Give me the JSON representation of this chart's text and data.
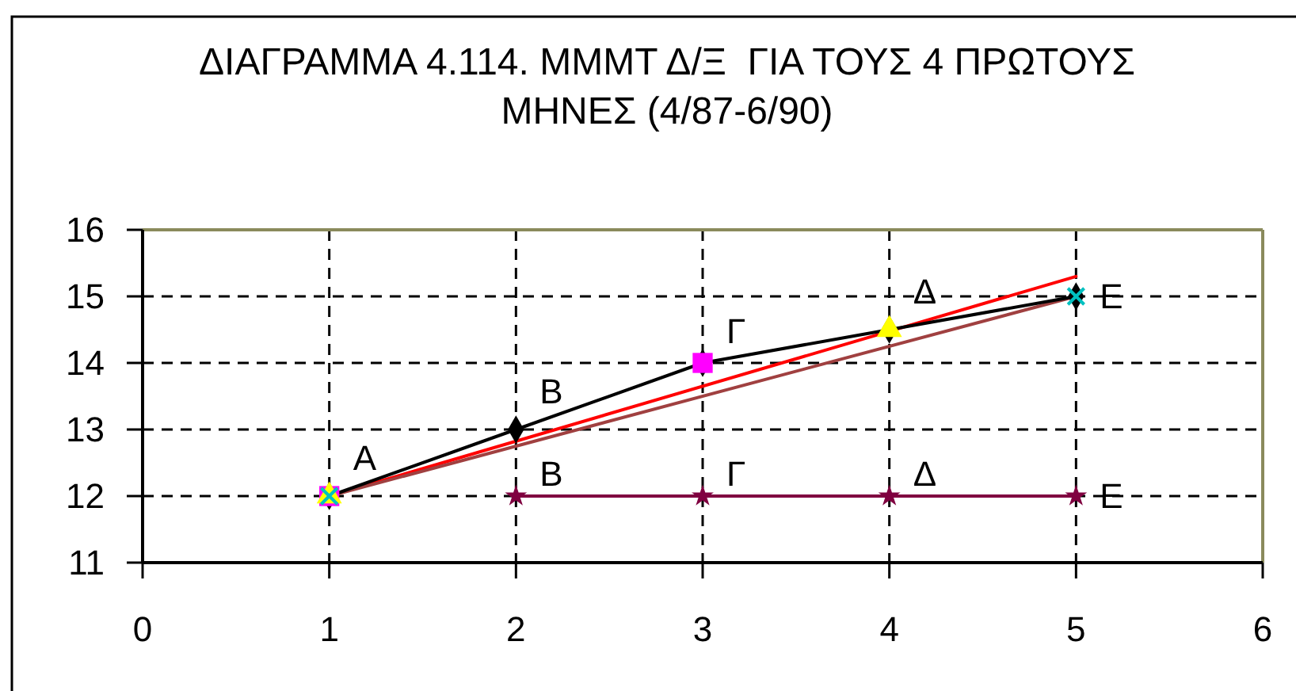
{
  "chart_data": {
    "type": "line",
    "title": "ΔΙΑΓΡΑΜΜΑ 4.114. ΜΜΜΤ Δ/Ξ  ΓΙΑ ΤΟΥΣ 4 ΠΡΩΤΟΥΣ ΜΗΝΕΣ (4/87-6/90)",
    "xlim": [
      0,
      6
    ],
    "xticks": [
      0,
      1,
      2,
      3,
      4,
      5,
      6
    ],
    "ylim": [
      11,
      16
    ],
    "yticks": [
      11,
      12,
      13,
      14,
      15,
      16
    ],
    "grid": true,
    "line_style": "solid",
    "series": [
      {
        "color": "#ff0000",
        "x": [
          1,
          5
        ],
        "values": [
          12,
          15.3
        ],
        "marker": "none"
      },
      {
        "color": "#a04040",
        "x": [
          1,
          5
        ],
        "values": [
          12,
          15
        ],
        "marker": "none"
      },
      {
        "color": "#000000",
        "x": [
          1,
          2,
          3,
          4,
          5
        ],
        "values": [
          12,
          13,
          14,
          14.5,
          15
        ],
        "marker": "diamond",
        "value_labels": [
          "Α",
          "Β",
          "Γ",
          "Δ",
          "Ε"
        ]
      },
      {
        "type": "scatter",
        "color": "#ff00ff",
        "x": [
          1,
          3
        ],
        "values": [
          12,
          14
        ],
        "marker": "square"
      },
      {
        "type": "scatter",
        "color": "#ffff00",
        "x": [
          1,
          4
        ],
        "values": [
          12,
          14.5
        ],
        "marker": "triangle"
      },
      {
        "type": "scatter",
        "color": "#00c0c0",
        "x": [
          1,
          5
        ],
        "values": [
          12,
          15
        ],
        "marker": "cross"
      },
      {
        "color": "#800040",
        "x": [
          2,
          3,
          4,
          5
        ],
        "values": [
          12,
          12,
          12,
          12
        ],
        "marker": "star",
        "value_labels": [
          "Β",
          "Γ",
          "Δ",
          "Ε"
        ]
      }
    ]
  }
}
